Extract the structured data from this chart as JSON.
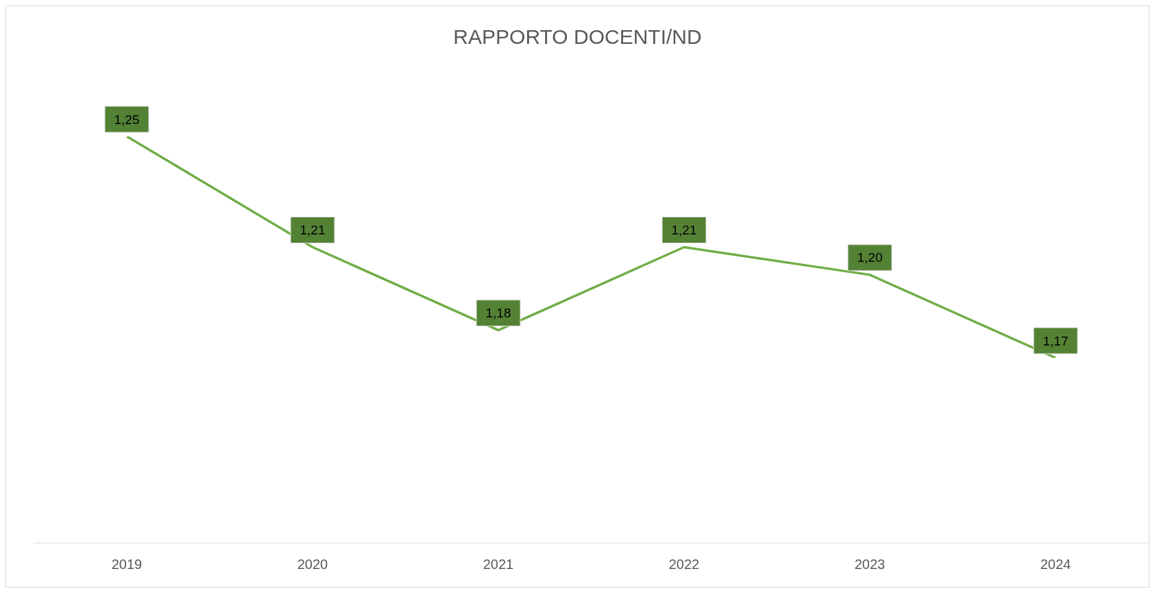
{
  "chart_data": {
    "type": "line",
    "title": "RAPPORTO DOCENTI/ND",
    "categories": [
      "2019",
      "2020",
      "2021",
      "2022",
      "2023",
      "2024"
    ],
    "series": [
      {
        "color": "#70ad47",
        "values": [
          1.25,
          1.21,
          1.18,
          1.21,
          1.2,
          1.17
        ],
        "value_labels": [
          "1,25",
          "1,21",
          "1,18",
          "1,21",
          "1,20",
          "1,17"
        ]
      }
    ],
    "grid": false,
    "legend": false,
    "line_style": "solid"
  }
}
